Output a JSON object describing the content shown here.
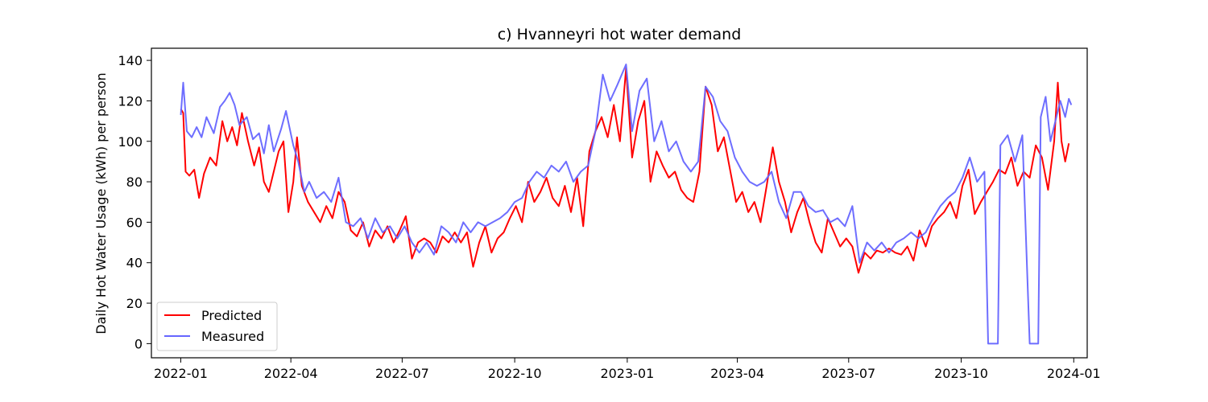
{
  "chart_data": {
    "type": "line",
    "title": "c) Hvanneyri hot water demand",
    "xlabel": "",
    "ylabel": "Daily Hot Water Usage (kWh) per person",
    "xlim": [
      "2021-12-08",
      "2024-01-12"
    ],
    "ylim": [
      -7,
      146
    ],
    "x_ticks": [
      "2022-01",
      "2022-04",
      "2022-07",
      "2022-10",
      "2023-01",
      "2023-04",
      "2023-07",
      "2023-10",
      "2024-01"
    ],
    "y_ticks": [
      0,
      20,
      40,
      60,
      80,
      100,
      120,
      140
    ],
    "grid": false,
    "legend": {
      "position": "lower-left",
      "entries": [
        "Predicted",
        "Measured"
      ]
    },
    "series": [
      {
        "name": "Predicted",
        "color": "#ff0000",
        "points": [
          [
            "2022-01-01",
            116
          ],
          [
            "2022-01-03",
            114
          ],
          [
            "2022-01-05",
            85
          ],
          [
            "2022-01-08",
            83
          ],
          [
            "2022-01-12",
            86
          ],
          [
            "2022-01-16",
            72
          ],
          [
            "2022-01-20",
            84
          ],
          [
            "2022-01-25",
            92
          ],
          [
            "2022-01-30",
            88
          ],
          [
            "2022-02-04",
            110
          ],
          [
            "2022-02-08",
            100
          ],
          [
            "2022-02-12",
            107
          ],
          [
            "2022-02-16",
            98
          ],
          [
            "2022-02-20",
            114
          ],
          [
            "2022-02-25",
            100
          ],
          [
            "2022-03-02",
            88
          ],
          [
            "2022-03-06",
            97
          ],
          [
            "2022-03-10",
            80
          ],
          [
            "2022-03-14",
            75
          ],
          [
            "2022-03-18",
            85
          ],
          [
            "2022-03-22",
            95
          ],
          [
            "2022-03-26",
            100
          ],
          [
            "2022-03-30",
            65
          ],
          [
            "2022-04-03",
            80
          ],
          [
            "2022-04-06",
            102
          ],
          [
            "2022-04-10",
            78
          ],
          [
            "2022-04-15",
            70
          ],
          [
            "2022-04-20",
            65
          ],
          [
            "2022-04-25",
            60
          ],
          [
            "2022-04-30",
            68
          ],
          [
            "2022-05-05",
            62
          ],
          [
            "2022-05-10",
            75
          ],
          [
            "2022-05-15",
            70
          ],
          [
            "2022-05-20",
            56
          ],
          [
            "2022-05-25",
            53
          ],
          [
            "2022-05-30",
            60
          ],
          [
            "2022-06-04",
            48
          ],
          [
            "2022-06-09",
            56
          ],
          [
            "2022-06-14",
            52
          ],
          [
            "2022-06-19",
            58
          ],
          [
            "2022-06-24",
            50
          ],
          [
            "2022-06-29",
            56
          ],
          [
            "2022-07-04",
            63
          ],
          [
            "2022-07-09",
            42
          ],
          [
            "2022-07-14",
            50
          ],
          [
            "2022-07-19",
            52
          ],
          [
            "2022-07-24",
            50
          ],
          [
            "2022-07-29",
            45
          ],
          [
            "2022-08-03",
            53
          ],
          [
            "2022-08-08",
            50
          ],
          [
            "2022-08-13",
            55
          ],
          [
            "2022-08-18",
            50
          ],
          [
            "2022-08-23",
            55
          ],
          [
            "2022-08-28",
            38
          ],
          [
            "2022-09-02",
            50
          ],
          [
            "2022-09-07",
            58
          ],
          [
            "2022-09-12",
            45
          ],
          [
            "2022-09-17",
            52
          ],
          [
            "2022-09-22",
            55
          ],
          [
            "2022-09-27",
            62
          ],
          [
            "2022-10-02",
            68
          ],
          [
            "2022-10-07",
            60
          ],
          [
            "2022-10-12",
            80
          ],
          [
            "2022-10-17",
            70
          ],
          [
            "2022-10-22",
            75
          ],
          [
            "2022-10-27",
            82
          ],
          [
            "2022-11-01",
            72
          ],
          [
            "2022-11-06",
            68
          ],
          [
            "2022-11-11",
            78
          ],
          [
            "2022-11-16",
            65
          ],
          [
            "2022-11-21",
            82
          ],
          [
            "2022-11-26",
            58
          ],
          [
            "2022-12-01",
            95
          ],
          [
            "2022-12-06",
            105
          ],
          [
            "2022-12-11",
            112
          ],
          [
            "2022-12-16",
            102
          ],
          [
            "2022-12-21",
            118
          ],
          [
            "2022-12-26",
            100
          ],
          [
            "2022-12-31",
            136
          ],
          [
            "2023-01-05",
            92
          ],
          [
            "2023-01-10",
            110
          ],
          [
            "2023-01-15",
            120
          ],
          [
            "2023-01-20",
            80
          ],
          [
            "2023-01-25",
            95
          ],
          [
            "2023-01-30",
            88
          ],
          [
            "2023-02-04",
            82
          ],
          [
            "2023-02-09",
            85
          ],
          [
            "2023-02-14",
            76
          ],
          [
            "2023-02-19",
            72
          ],
          [
            "2023-02-24",
            70
          ],
          [
            "2023-03-01",
            85
          ],
          [
            "2023-03-06",
            127
          ],
          [
            "2023-03-11",
            118
          ],
          [
            "2023-03-16",
            95
          ],
          [
            "2023-03-21",
            102
          ],
          [
            "2023-03-26",
            86
          ],
          [
            "2023-03-31",
            70
          ],
          [
            "2023-04-05",
            75
          ],
          [
            "2023-04-10",
            65
          ],
          [
            "2023-04-15",
            70
          ],
          [
            "2023-04-20",
            60
          ],
          [
            "2023-04-25",
            78
          ],
          [
            "2023-04-30",
            97
          ],
          [
            "2023-05-05",
            80
          ],
          [
            "2023-05-10",
            70
          ],
          [
            "2023-05-15",
            55
          ],
          [
            "2023-05-20",
            65
          ],
          [
            "2023-05-25",
            72
          ],
          [
            "2023-05-30",
            60
          ],
          [
            "2023-06-04",
            50
          ],
          [
            "2023-06-09",
            45
          ],
          [
            "2023-06-14",
            62
          ],
          [
            "2023-06-19",
            55
          ],
          [
            "2023-06-24",
            48
          ],
          [
            "2023-06-29",
            52
          ],
          [
            "2023-07-04",
            48
          ],
          [
            "2023-07-09",
            35
          ],
          [
            "2023-07-14",
            45
          ],
          [
            "2023-07-19",
            42
          ],
          [
            "2023-07-24",
            46
          ],
          [
            "2023-07-29",
            45
          ],
          [
            "2023-08-03",
            47
          ],
          [
            "2023-08-08",
            45
          ],
          [
            "2023-08-13",
            44
          ],
          [
            "2023-08-18",
            48
          ],
          [
            "2023-08-23",
            41
          ],
          [
            "2023-08-28",
            56
          ],
          [
            "2023-09-02",
            48
          ],
          [
            "2023-09-07",
            58
          ],
          [
            "2023-09-12",
            62
          ],
          [
            "2023-09-17",
            65
          ],
          [
            "2023-09-22",
            70
          ],
          [
            "2023-09-27",
            62
          ],
          [
            "2023-10-02",
            78
          ],
          [
            "2023-10-07",
            86
          ],
          [
            "2023-10-12",
            64
          ],
          [
            "2023-10-17",
            70
          ],
          [
            "2023-10-22",
            75
          ],
          [
            "2023-10-27",
            80
          ],
          [
            "2023-11-01",
            86
          ],
          [
            "2023-11-06",
            84
          ],
          [
            "2023-11-11",
            92
          ],
          [
            "2023-11-16",
            78
          ],
          [
            "2023-11-21",
            85
          ],
          [
            "2023-11-26",
            82
          ],
          [
            "2023-12-01",
            98
          ],
          [
            "2023-12-06",
            92
          ],
          [
            "2023-12-11",
            76
          ],
          [
            "2023-12-16",
            100
          ],
          [
            "2023-12-19",
            129
          ],
          [
            "2023-12-22",
            100
          ],
          [
            "2023-12-25",
            90
          ],
          [
            "2023-12-28",
            99
          ]
        ]
      },
      {
        "name": "Measured",
        "color": "#6666ff",
        "points": [
          [
            "2022-01-01",
            113
          ],
          [
            "2022-01-03",
            129
          ],
          [
            "2022-01-06",
            105
          ],
          [
            "2022-01-10",
            102
          ],
          [
            "2022-01-14",
            107
          ],
          [
            "2022-01-18",
            102
          ],
          [
            "2022-01-22",
            112
          ],
          [
            "2022-01-28",
            104
          ],
          [
            "2022-02-02",
            117
          ],
          [
            "2022-02-06",
            120
          ],
          [
            "2022-02-10",
            124
          ],
          [
            "2022-02-14",
            118
          ],
          [
            "2022-02-18",
            108
          ],
          [
            "2022-02-24",
            112
          ],
          [
            "2022-03-01",
            101
          ],
          [
            "2022-03-06",
            104
          ],
          [
            "2022-03-10",
            94
          ],
          [
            "2022-03-14",
            108
          ],
          [
            "2022-03-18",
            95
          ],
          [
            "2022-03-24",
            106
          ],
          [
            "2022-03-28",
            115
          ],
          [
            "2022-04-03",
            98
          ],
          [
            "2022-04-07",
            90
          ],
          [
            "2022-04-12",
            75
          ],
          [
            "2022-04-16",
            80
          ],
          [
            "2022-04-22",
            72
          ],
          [
            "2022-04-28",
            75
          ],
          [
            "2022-05-04",
            70
          ],
          [
            "2022-05-10",
            82
          ],
          [
            "2022-05-16",
            60
          ],
          [
            "2022-05-22",
            58
          ],
          [
            "2022-05-28",
            62
          ],
          [
            "2022-06-03",
            52
          ],
          [
            "2022-06-09",
            62
          ],
          [
            "2022-06-15",
            55
          ],
          [
            "2022-06-21",
            58
          ],
          [
            "2022-06-27",
            52
          ],
          [
            "2022-07-03",
            58
          ],
          [
            "2022-07-09",
            50
          ],
          [
            "2022-07-15",
            45
          ],
          [
            "2022-07-21",
            50
          ],
          [
            "2022-07-27",
            44
          ],
          [
            "2022-08-02",
            58
          ],
          [
            "2022-08-08",
            55
          ],
          [
            "2022-08-14",
            50
          ],
          [
            "2022-08-20",
            60
          ],
          [
            "2022-08-26",
            55
          ],
          [
            "2022-09-01",
            60
          ],
          [
            "2022-09-07",
            58
          ],
          [
            "2022-09-13",
            60
          ],
          [
            "2022-09-19",
            62
          ],
          [
            "2022-09-25",
            65
          ],
          [
            "2022-10-01",
            70
          ],
          [
            "2022-10-07",
            72
          ],
          [
            "2022-10-13",
            80
          ],
          [
            "2022-10-19",
            85
          ],
          [
            "2022-10-25",
            82
          ],
          [
            "2022-10-31",
            88
          ],
          [
            "2022-11-06",
            85
          ],
          [
            "2022-11-12",
            90
          ],
          [
            "2022-11-18",
            80
          ],
          [
            "2022-11-24",
            85
          ],
          [
            "2022-11-30",
            88
          ],
          [
            "2022-12-06",
            105
          ],
          [
            "2022-12-12",
            133
          ],
          [
            "2022-12-18",
            120
          ],
          [
            "2022-12-24",
            128
          ],
          [
            "2022-12-31",
            138
          ],
          [
            "2023-01-05",
            105
          ],
          [
            "2023-01-11",
            125
          ],
          [
            "2023-01-17",
            131
          ],
          [
            "2023-01-23",
            100
          ],
          [
            "2023-01-29",
            110
          ],
          [
            "2023-02-04",
            95
          ],
          [
            "2023-02-10",
            100
          ],
          [
            "2023-02-16",
            90
          ],
          [
            "2023-02-22",
            85
          ],
          [
            "2023-02-28",
            90
          ],
          [
            "2023-03-06",
            127
          ],
          [
            "2023-03-12",
            122
          ],
          [
            "2023-03-18",
            110
          ],
          [
            "2023-03-24",
            105
          ],
          [
            "2023-03-30",
            92
          ],
          [
            "2023-04-05",
            85
          ],
          [
            "2023-04-11",
            80
          ],
          [
            "2023-04-17",
            78
          ],
          [
            "2023-04-23",
            80
          ],
          [
            "2023-04-29",
            85
          ],
          [
            "2023-05-05",
            70
          ],
          [
            "2023-05-11",
            62
          ],
          [
            "2023-05-17",
            75
          ],
          [
            "2023-05-23",
            75
          ],
          [
            "2023-05-29",
            68
          ],
          [
            "2023-06-04",
            65
          ],
          [
            "2023-06-10",
            66
          ],
          [
            "2023-06-16",
            60
          ],
          [
            "2023-06-22",
            62
          ],
          [
            "2023-06-28",
            58
          ],
          [
            "2023-07-04",
            68
          ],
          [
            "2023-07-10",
            40
          ],
          [
            "2023-07-16",
            50
          ],
          [
            "2023-07-22",
            46
          ],
          [
            "2023-07-28",
            50
          ],
          [
            "2023-08-03",
            45
          ],
          [
            "2023-08-09",
            50
          ],
          [
            "2023-08-15",
            52
          ],
          [
            "2023-08-21",
            55
          ],
          [
            "2023-08-27",
            52
          ],
          [
            "2023-09-02",
            55
          ],
          [
            "2023-09-08",
            62
          ],
          [
            "2023-09-14",
            68
          ],
          [
            "2023-09-20",
            72
          ],
          [
            "2023-09-26",
            75
          ],
          [
            "2023-10-02",
            82
          ],
          [
            "2023-10-08",
            92
          ],
          [
            "2023-10-14",
            80
          ],
          [
            "2023-10-20",
            85
          ],
          [
            "2023-10-23",
            0
          ],
          [
            "2023-10-31",
            0
          ],
          [
            "2023-11-02",
            98
          ],
          [
            "2023-11-08",
            103
          ],
          [
            "2023-11-14",
            90
          ],
          [
            "2023-11-20",
            103
          ],
          [
            "2023-11-26",
            0
          ],
          [
            "2023-12-03",
            0
          ],
          [
            "2023-12-05",
            112
          ],
          [
            "2023-12-09",
            122
          ],
          [
            "2023-12-13",
            100
          ],
          [
            "2023-12-17",
            110
          ],
          [
            "2023-12-21",
            120
          ],
          [
            "2023-12-25",
            112
          ],
          [
            "2023-12-28",
            121
          ],
          [
            "2023-12-30",
            118
          ]
        ]
      }
    ]
  }
}
